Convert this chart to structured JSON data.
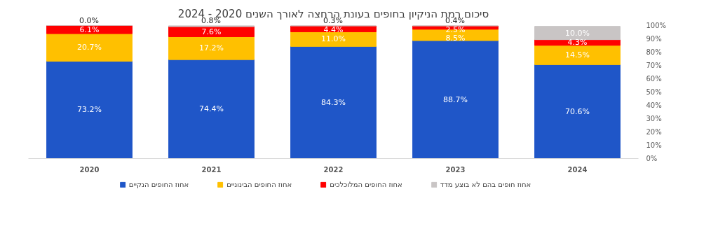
{
  "chart_data": {
    "type": "bar",
    "stacked": true,
    "title": "סיכום רמת הניקיון בחופים בעונת הרחצה לאורך השנים 2020 - 2024",
    "categories": [
      "2020",
      "2021",
      "2022",
      "2023",
      "2024"
    ],
    "series": [
      {
        "name": "אחוז החופים הנקיים",
        "color": "#1f56c8",
        "values": [
          73.2,
          74.4,
          84.3,
          88.7,
          70.6
        ],
        "value_labels": [
          "73.2%",
          "74.4%",
          "84.3%",
          "88.7%",
          "70.6%"
        ]
      },
      {
        "name": "אחוז החופים הבינוניים",
        "color": "#ffc000",
        "values": [
          20.7,
          17.2,
          11.0,
          8.5,
          14.5
        ],
        "value_labels": [
          "20.7%",
          "17.2%",
          "11.0%",
          "8.5%",
          "14.5%"
        ]
      },
      {
        "name": "אחוז החופים המלוכלכים",
        "color": "#ff0000",
        "values": [
          6.1,
          7.6,
          4.4,
          2.5,
          4.3
        ],
        "value_labels": [
          "6.1%",
          "7.6%",
          "4.4%",
          "2.5%",
          "4.3%"
        ]
      },
      {
        "name": "אחוז חופים בהם לא בוצע מדד",
        "color": "#c9c5c5",
        "values": [
          0.0,
          0.8,
          0.3,
          0.4,
          10.0
        ],
        "value_labels": [
          "0.0%",
          "0.8%",
          "0.3%",
          "0.4%",
          "10.0%"
        ]
      }
    ],
    "ylim": [
      0,
      100
    ],
    "yticks": [
      {
        "value": 0,
        "label": "0%"
      },
      {
        "value": 10,
        "label": "10%"
      },
      {
        "value": 20,
        "label": "20%"
      },
      {
        "value": 30,
        "label": "30%"
      },
      {
        "value": 40,
        "label": "40%"
      },
      {
        "value": 50,
        "label": "50%"
      },
      {
        "value": 60,
        "label": "60%"
      },
      {
        "value": 70,
        "label": "70%"
      },
      {
        "value": 80,
        "label": "80%"
      },
      {
        "value": 90,
        "label": "90%"
      },
      {
        "value": 100,
        "label": "100%"
      }
    ],
    "grid": false,
    "legend": "bottom"
  }
}
